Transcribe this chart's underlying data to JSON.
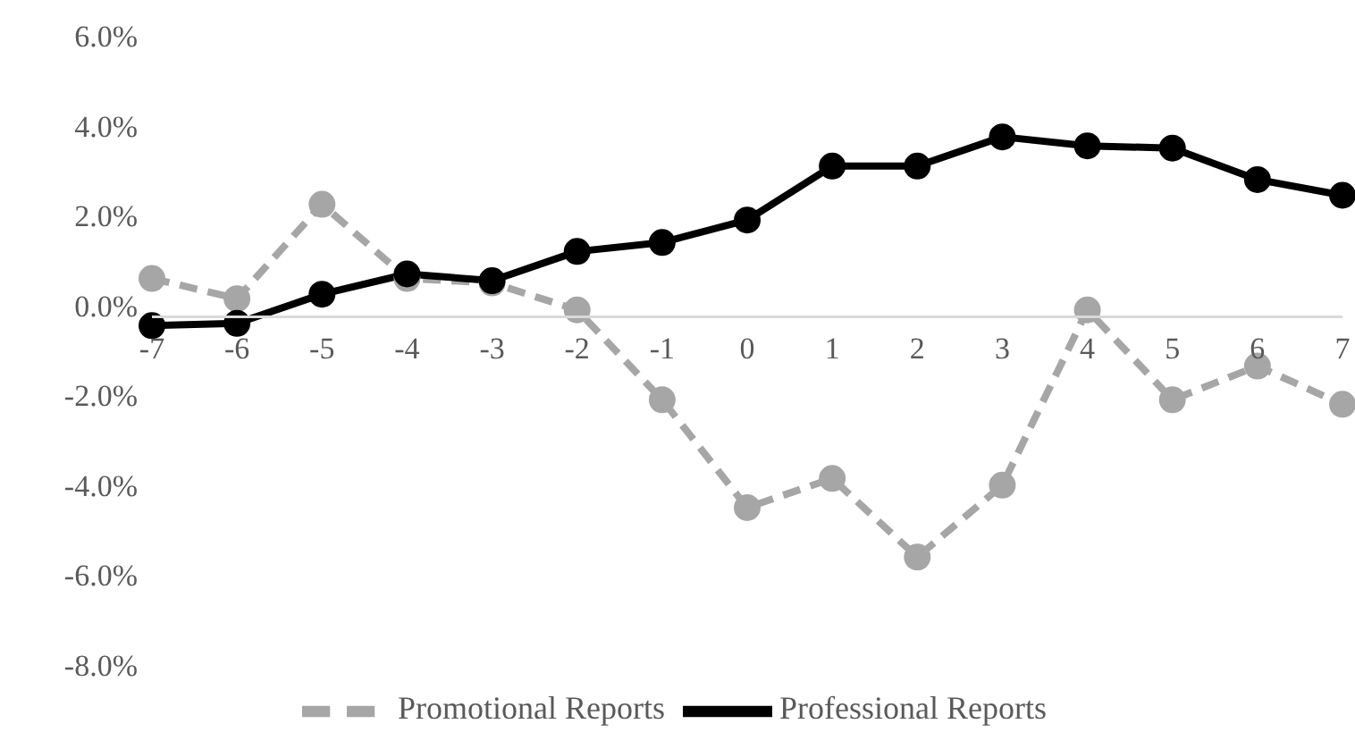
{
  "chart_data": {
    "type": "line",
    "categories": [
      "-7",
      "-6",
      "-5",
      "-4",
      "-3",
      "-2",
      "-1",
      "0",
      "1",
      "2",
      "3",
      "4",
      "5",
      "6",
      "7"
    ],
    "series": [
      {
        "name": "Promotional Reports",
        "color": "#a6a6a6",
        "line_style": "dashed",
        "values": [
          0.6,
          0.15,
          2.25,
          0.6,
          0.5,
          -0.1,
          -2.1,
          -4.5,
          -3.85,
          -5.6,
          -4.0,
          -0.1,
          -2.1,
          -1.35,
          -2.2
        ]
      },
      {
        "name": "Professional Reports",
        "color": "#000000",
        "line_style": "solid",
        "values": [
          -0.45,
          -0.4,
          0.25,
          0.7,
          0.55,
          1.2,
          1.4,
          1.9,
          3.1,
          3.1,
          3.75,
          3.55,
          3.5,
          2.8,
          2.45
        ]
      }
    ],
    "ylim": [
      -8,
      6
    ],
    "yticks": [
      {
        "value": 6,
        "label": "6.0%"
      },
      {
        "value": 4,
        "label": "4.0%"
      },
      {
        "value": 2,
        "label": "2.0%"
      },
      {
        "value": 0,
        "label": "0.0%"
      },
      {
        "value": -2,
        "label": "-2.0%"
      },
      {
        "value": -4,
        "label": "-4.0%"
      },
      {
        "value": -6,
        "label": "-6.0%"
      },
      {
        "value": -8,
        "label": "-8.0%"
      }
    ],
    "marker": "circle",
    "grid": false,
    "legend": "bottom"
  }
}
